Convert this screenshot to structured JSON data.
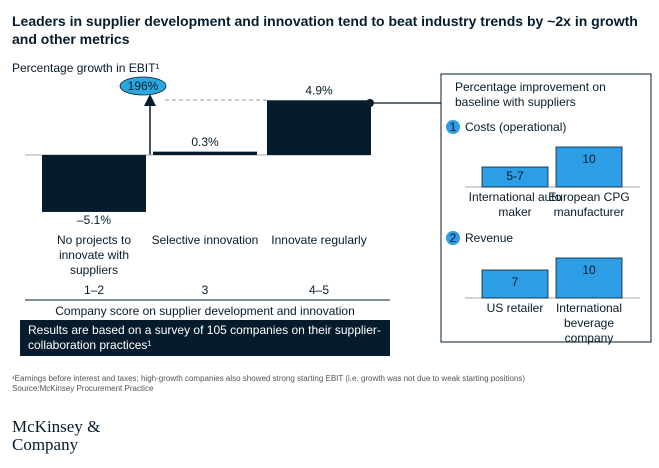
{
  "title": "Leaders in supplier development and innovation tend to beat industry trends by ~2x in growth and other metrics",
  "panel_title": "Percentage improvement on baseline with suppliers",
  "chart_data": [
    {
      "type": "bar",
      "y_label": "Percentage growth in EBIT¹",
      "categories": [
        "No projects to innovate with suppliers",
        "Selective innovation",
        "Innovate regularly"
      ],
      "scores": [
        "1–2",
        "3",
        "4–5"
      ],
      "x_label": "Company score on supplier development and innovation",
      "values": [
        -5.1,
        0.3,
        4.9
      ],
      "value_labels": [
        "–5.1%",
        "0.3%",
        "4.9%"
      ],
      "ylim": [
        -6,
        6
      ],
      "color": "#051c2c",
      "annotation": "196%",
      "note": "Results are based on a survey of 105 companies on their supplier-collaboration practices¹"
    },
    {
      "type": "bar",
      "marker": "1",
      "title": "Costs (operational)",
      "categories": [
        "International auto maker",
        "European CPG manufacturer"
      ],
      "values": [
        [
          5,
          7
        ],
        10
      ],
      "value_labels": [
        "5-7",
        "10"
      ],
      "ylim": [
        0,
        10
      ],
      "color": "#2d9de5"
    },
    {
      "type": "bar",
      "marker": "2",
      "title": "Revenue",
      "categories": [
        "US retailer",
        "International beverage company"
      ],
      "values": [
        7,
        10
      ],
      "ylim": [
        0,
        10
      ],
      "color": "#2d9de5"
    }
  ],
  "footnote": "¹Earnings before interest and taxes; high-growth companies also showed strong starting EBIT (i.e. growth was not due to weak starting positions)",
  "source": "Source:McKinsey Procurement Practice",
  "logo": "McKinsey & Company"
}
